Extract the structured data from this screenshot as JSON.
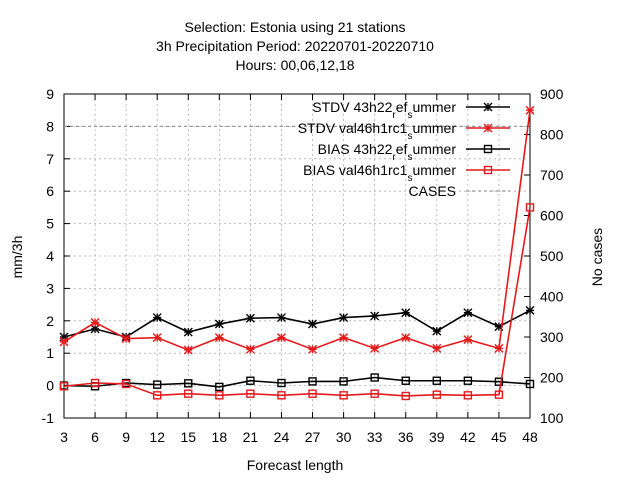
{
  "chart_data": {
    "type": "line",
    "title_lines": [
      "Selection: Estonia using    21 stations",
      "3h Precipitation   Period: 20220701-20220710",
      "Hours:  00,06,12,18"
    ],
    "xlabel": "Forecast length",
    "ylabel": "mm/3h",
    "y2label": "No cases",
    "x": [
      3,
      6,
      9,
      12,
      15,
      18,
      21,
      24,
      27,
      30,
      33,
      36,
      39,
      42,
      45,
      48
    ],
    "xlim": [
      3,
      48
    ],
    "ylim": [
      -1,
      9
    ],
    "y2lim": [
      100,
      900
    ],
    "yticks": [
      "-1",
      "0",
      "1",
      "2",
      "3",
      "4",
      "5",
      "6",
      "7",
      "8",
      "9"
    ],
    "y2ticks": [
      "100",
      "200",
      "300",
      "400",
      "500",
      "600",
      "700",
      "800",
      "900"
    ],
    "grid": true,
    "legend_position": "top-right",
    "series": [
      {
        "name": "STDV 43h22",
        "name_sub": "r",
        "name_mid": "ef",
        "name_sub2": "s",
        "name_end": "ummer",
        "color": "#000000",
        "marker": "star",
        "axis": "y",
        "values": [
          1.5,
          1.75,
          1.5,
          2.1,
          1.65,
          1.9,
          2.08,
          2.1,
          1.9,
          2.1,
          2.15,
          2.25,
          1.68,
          2.25,
          1.82,
          2.32
        ]
      },
      {
        "name": "STDV val46h1rc1",
        "name_sub": "s",
        "name_end": "ummer",
        "color": "#e41a1c",
        "marker": "star",
        "axis": "y",
        "values": [
          1.35,
          1.95,
          1.45,
          1.48,
          1.1,
          1.48,
          1.12,
          1.48,
          1.12,
          1.48,
          1.15,
          1.48,
          1.15,
          1.42,
          1.15,
          8.5
        ]
      },
      {
        "name": "BIAS 43h22",
        "name_sub": "r",
        "name_mid": "ef",
        "name_sub2": "s",
        "name_end": "ummer",
        "color": "#000000",
        "marker": "square",
        "axis": "y",
        "values": [
          0.0,
          -0.02,
          0.08,
          0.03,
          0.07,
          -0.04,
          0.15,
          0.08,
          0.13,
          0.13,
          0.25,
          0.15,
          0.15,
          0.15,
          0.12,
          0.05
        ]
      },
      {
        "name": "BIAS val46h1rc1",
        "name_sub": "s",
        "name_end": "ummer",
        "color": "#e41a1c",
        "marker": "square",
        "axis": "y",
        "values": [
          -0.02,
          0.08,
          0.05,
          -0.3,
          -0.25,
          -0.3,
          -0.25,
          -0.3,
          -0.25,
          -0.3,
          -0.25,
          -0.32,
          -0.28,
          -0.3,
          -0.28,
          5.5
        ]
      },
      {
        "name": "CASES",
        "color": "#999999",
        "marker": "none",
        "dashed": true,
        "axis": "y2",
        "values": [
          820,
          820,
          820,
          820,
          820,
          820,
          820,
          820,
          820,
          820,
          820,
          820,
          820,
          820,
          820,
          820
        ]
      }
    ]
  }
}
